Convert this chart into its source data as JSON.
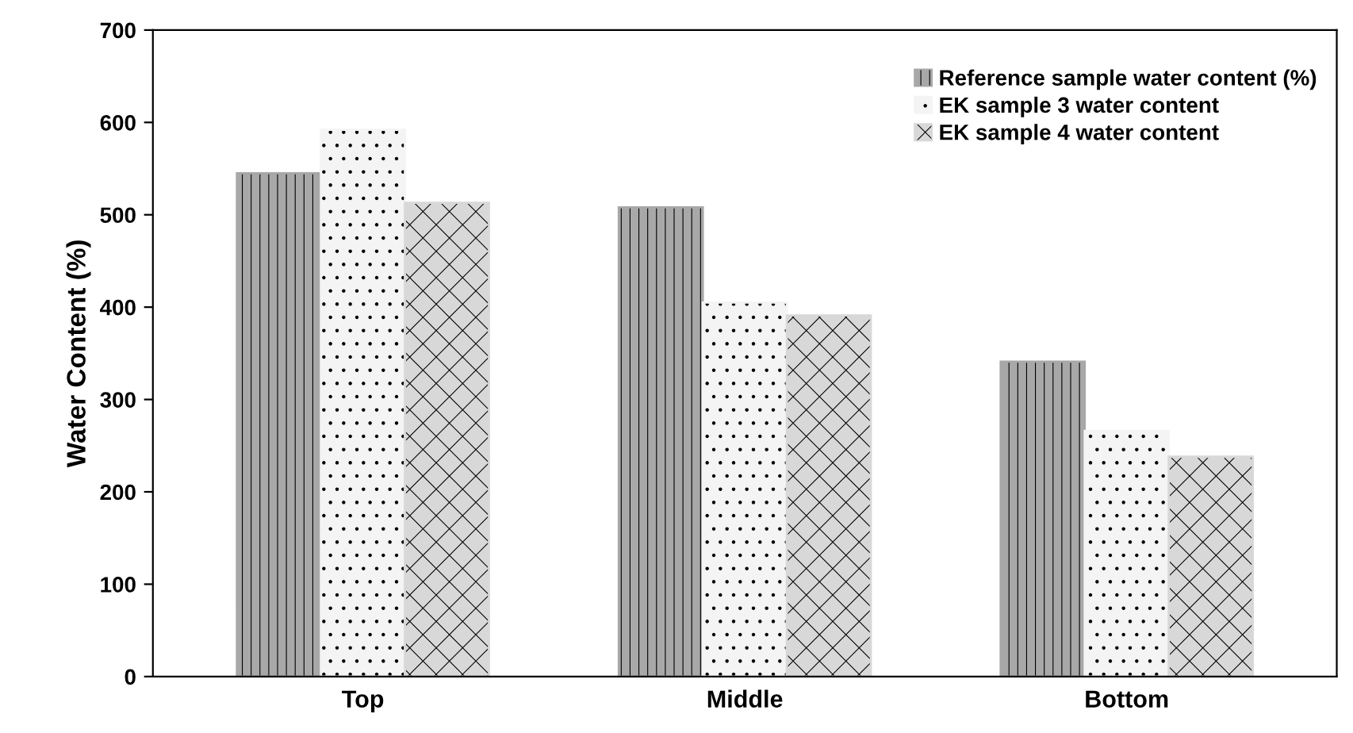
{
  "chart_data": {
    "type": "bar",
    "ylabel": "Water Content (%)",
    "categories": [
      "Top",
      "Middle",
      "Bottom"
    ],
    "series": [
      {
        "name": "Reference sample water content (%)",
        "color": "#a8a8a8",
        "values": [
          545,
          508,
          341
        ]
      },
      {
        "name": "EK sample 3 water content",
        "color": "#f4f4f4",
        "values": [
          592,
          405,
          266
        ]
      },
      {
        "name": "EK sample 4 water content",
        "color": "#d8d8d8",
        "values": [
          513,
          391,
          238
        ]
      }
    ],
    "ylim": [
      0,
      700
    ],
    "yticks": [
      0,
      100,
      200,
      300,
      400,
      500,
      600,
      700
    ],
    "grid": false,
    "legend": "top right"
  }
}
